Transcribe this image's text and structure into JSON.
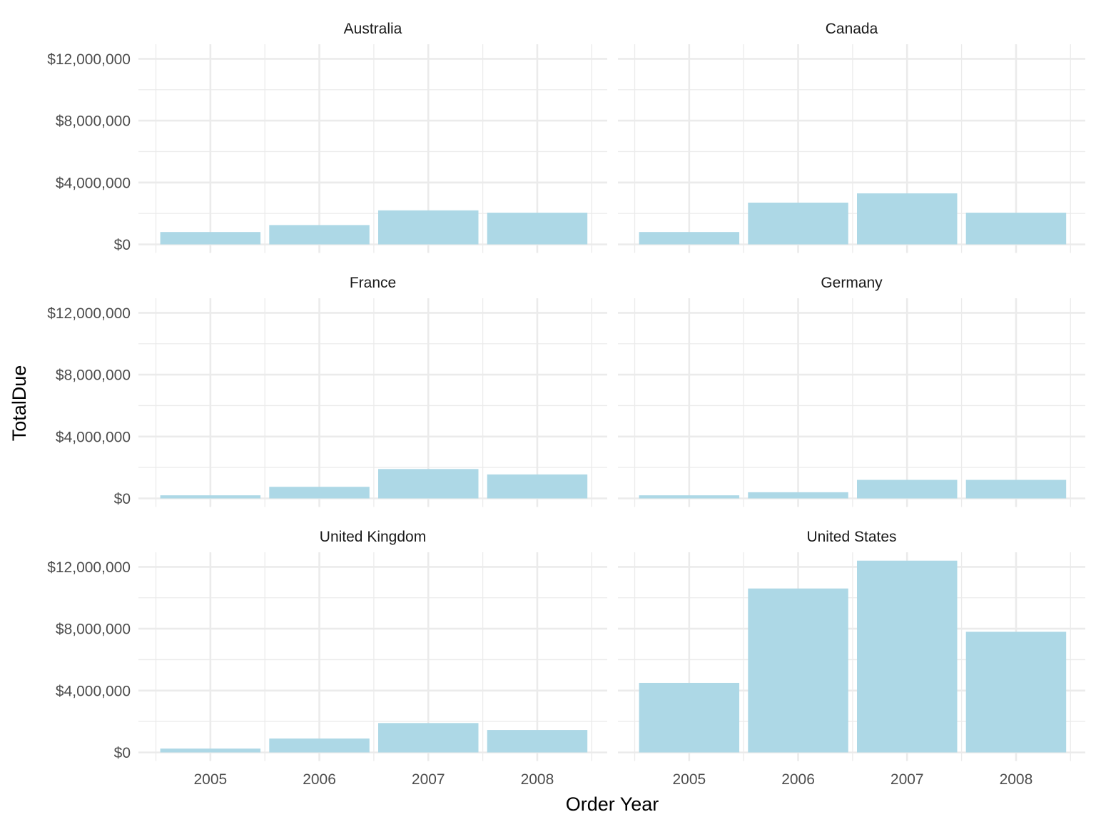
{
  "chart_data": {
    "type": "bar",
    "facet_by": "country",
    "categories": [
      "2005",
      "2006",
      "2007",
      "2008"
    ],
    "xlabel": "Order Year",
    "ylabel": "TotalDue",
    "ylim": [
      0,
      12400000
    ],
    "yticks": [
      0,
      4000000,
      8000000,
      12000000
    ],
    "ytick_labels": [
      "$0",
      "$4,000,000",
      "$8,000,000",
      "$12,000,000"
    ],
    "grid": true,
    "bar_color": "#add8e6",
    "facets": [
      {
        "name": "Australia",
        "values": [
          800000,
          1250000,
          2200000,
          2050000
        ]
      },
      {
        "name": "Canada",
        "values": [
          800000,
          2700000,
          3300000,
          2050000
        ]
      },
      {
        "name": "France",
        "values": [
          200000,
          750000,
          1900000,
          1550000
        ]
      },
      {
        "name": "Germany",
        "values": [
          200000,
          400000,
          1200000,
          1200000
        ]
      },
      {
        "name": "United Kingdom",
        "values": [
          250000,
          900000,
          1900000,
          1450000
        ]
      },
      {
        "name": "United States",
        "values": [
          4500000,
          10600000,
          12400000,
          7800000
        ]
      }
    ]
  }
}
